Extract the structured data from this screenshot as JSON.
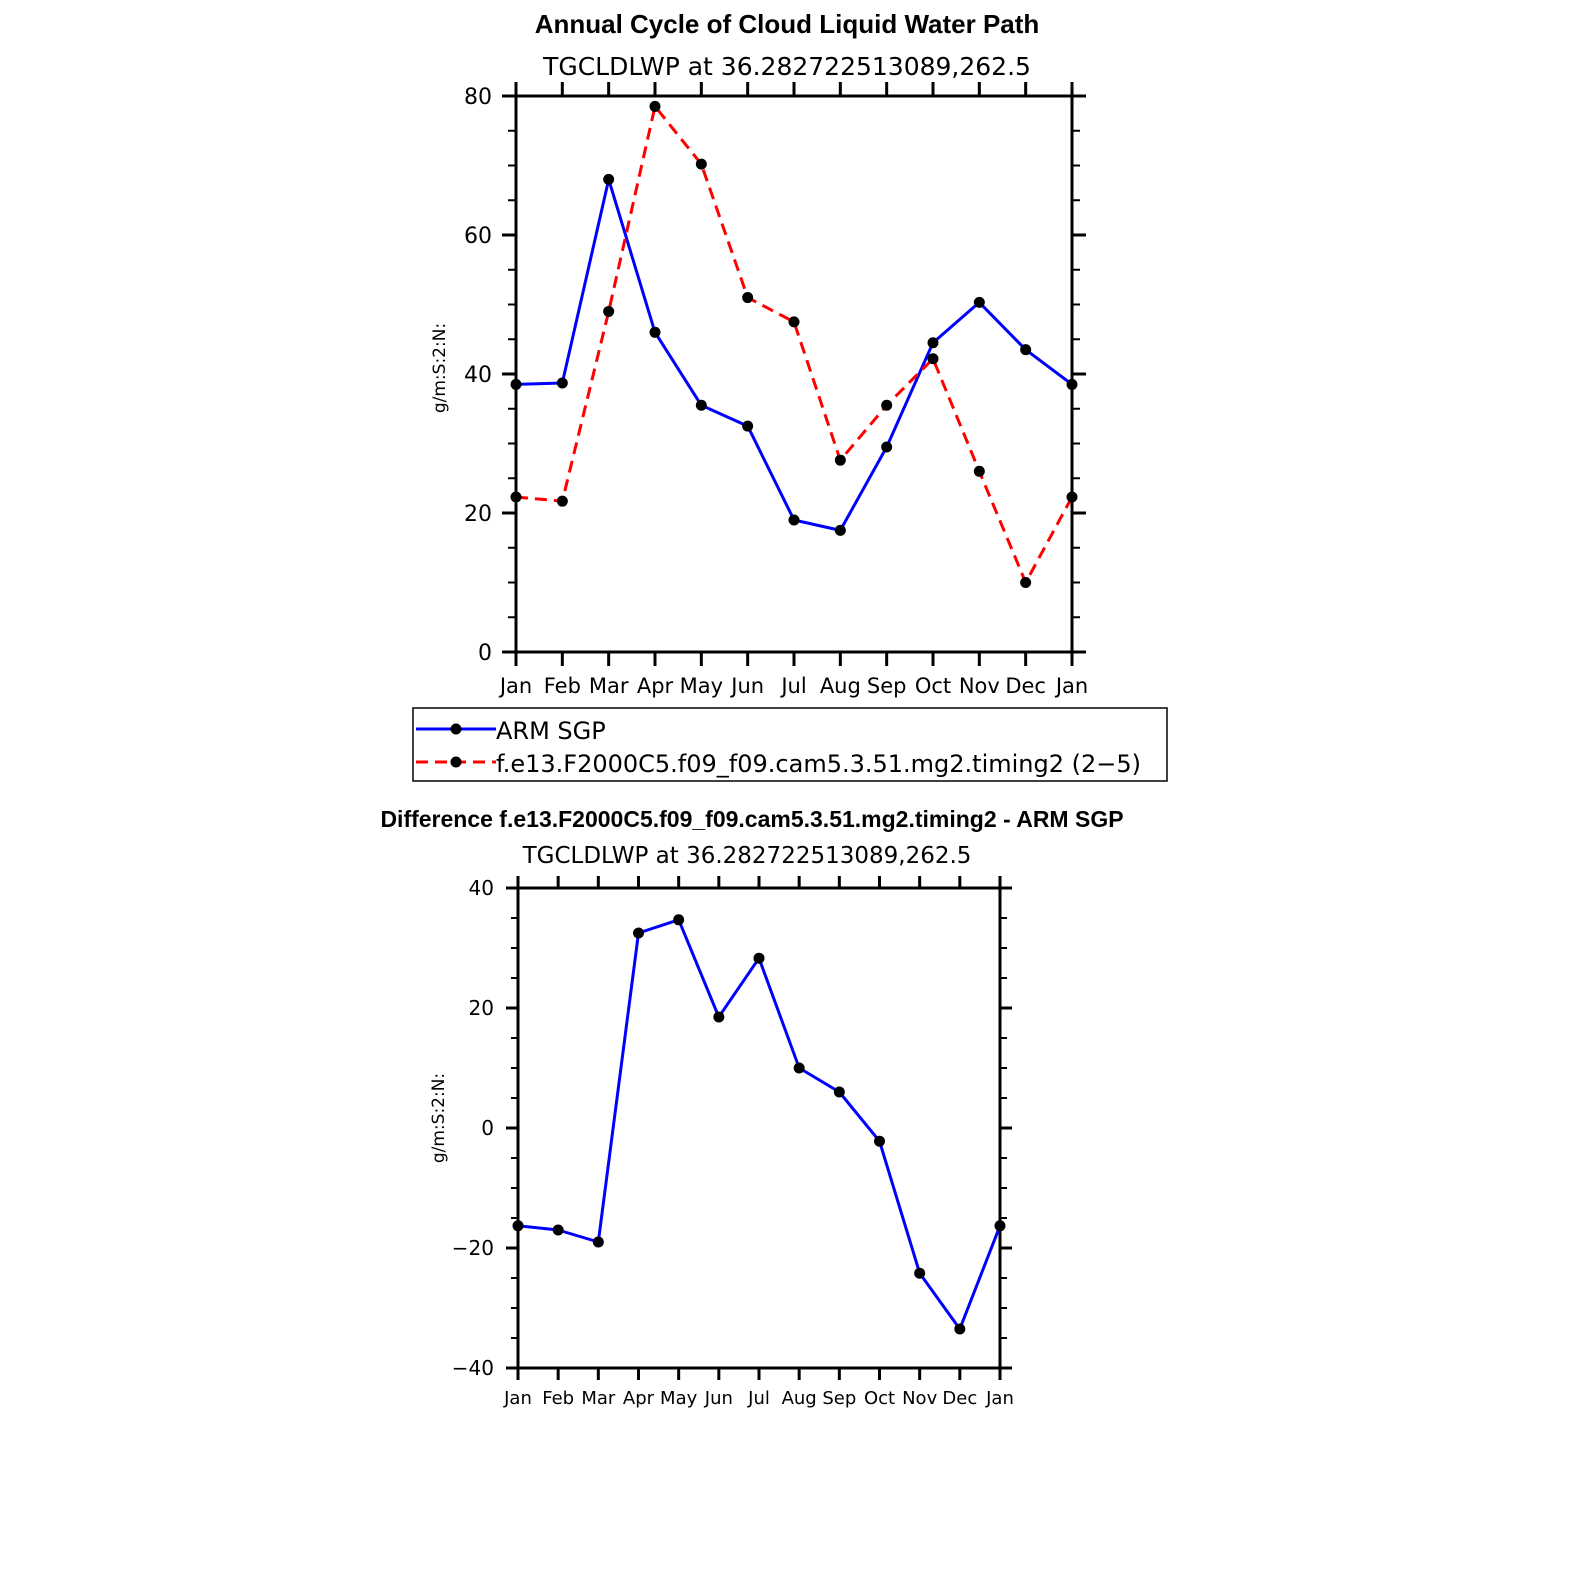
{
  "chart_data": [
    {
      "type": "line",
      "title": "Annual Cycle of Cloud Liquid Water Path",
      "subtitle": "TGCLDLWP at 36.282722513089,262.5",
      "xlabel": "",
      "ylabel": "g/m:S:2:N:",
      "ylim": [
        0,
        80
      ],
      "yticks": [
        "0",
        "20",
        "40",
        "60",
        "80"
      ],
      "categories": [
        "Jan",
        "Feb",
        "Mar",
        "Apr",
        "May",
        "Jun",
        "Jul",
        "Aug",
        "Sep",
        "Oct",
        "Nov",
        "Dec",
        "Jan"
      ],
      "series": [
        {
          "name": "ARM SGP",
          "color": "#0000ff",
          "dash": "solid",
          "values": [
            38.5,
            38.7,
            68.0,
            46.0,
            35.5,
            32.5,
            19.0,
            17.5,
            29.5,
            44.5,
            50.3,
            43.5,
            38.5
          ]
        },
        {
          "name": "f.e13.F2000C5.f09_f09.cam5.3.51.mg2.timing2 (2−5)",
          "color": "#ff0000",
          "dash": "dashed",
          "values": [
            22.3,
            21.7,
            49.0,
            78.5,
            70.2,
            51.0,
            47.5,
            27.6,
            35.5,
            42.2,
            26.0,
            10.0,
            22.3
          ]
        }
      ],
      "legend_placement": "below"
    },
    {
      "type": "line",
      "title": "Difference f.e13.F2000C5.f09_f09.cam5.3.51.mg2.timing2 - ARM SGP",
      "subtitle": "TGCLDLWP at 36.282722513089,262.5",
      "xlabel": "",
      "ylabel": "g/m:S:2:N:",
      "ylim": [
        -40,
        40
      ],
      "yticks": [
        "−40",
        "−20",
        "0",
        "20",
        "40"
      ],
      "categories": [
        "Jan",
        "Feb",
        "Mar",
        "Apr",
        "May",
        "Jun",
        "Jul",
        "Aug",
        "Sep",
        "Oct",
        "Nov",
        "Dec",
        "Jan"
      ],
      "series": [
        {
          "color": "#0000ff",
          "dash": "solid",
          "values": [
            -16.3,
            -17.0,
            -19.0,
            32.5,
            34.7,
            18.5,
            28.3,
            10.0,
            6.0,
            -2.2,
            -24.2,
            -33.5,
            -16.3
          ]
        }
      ]
    }
  ]
}
